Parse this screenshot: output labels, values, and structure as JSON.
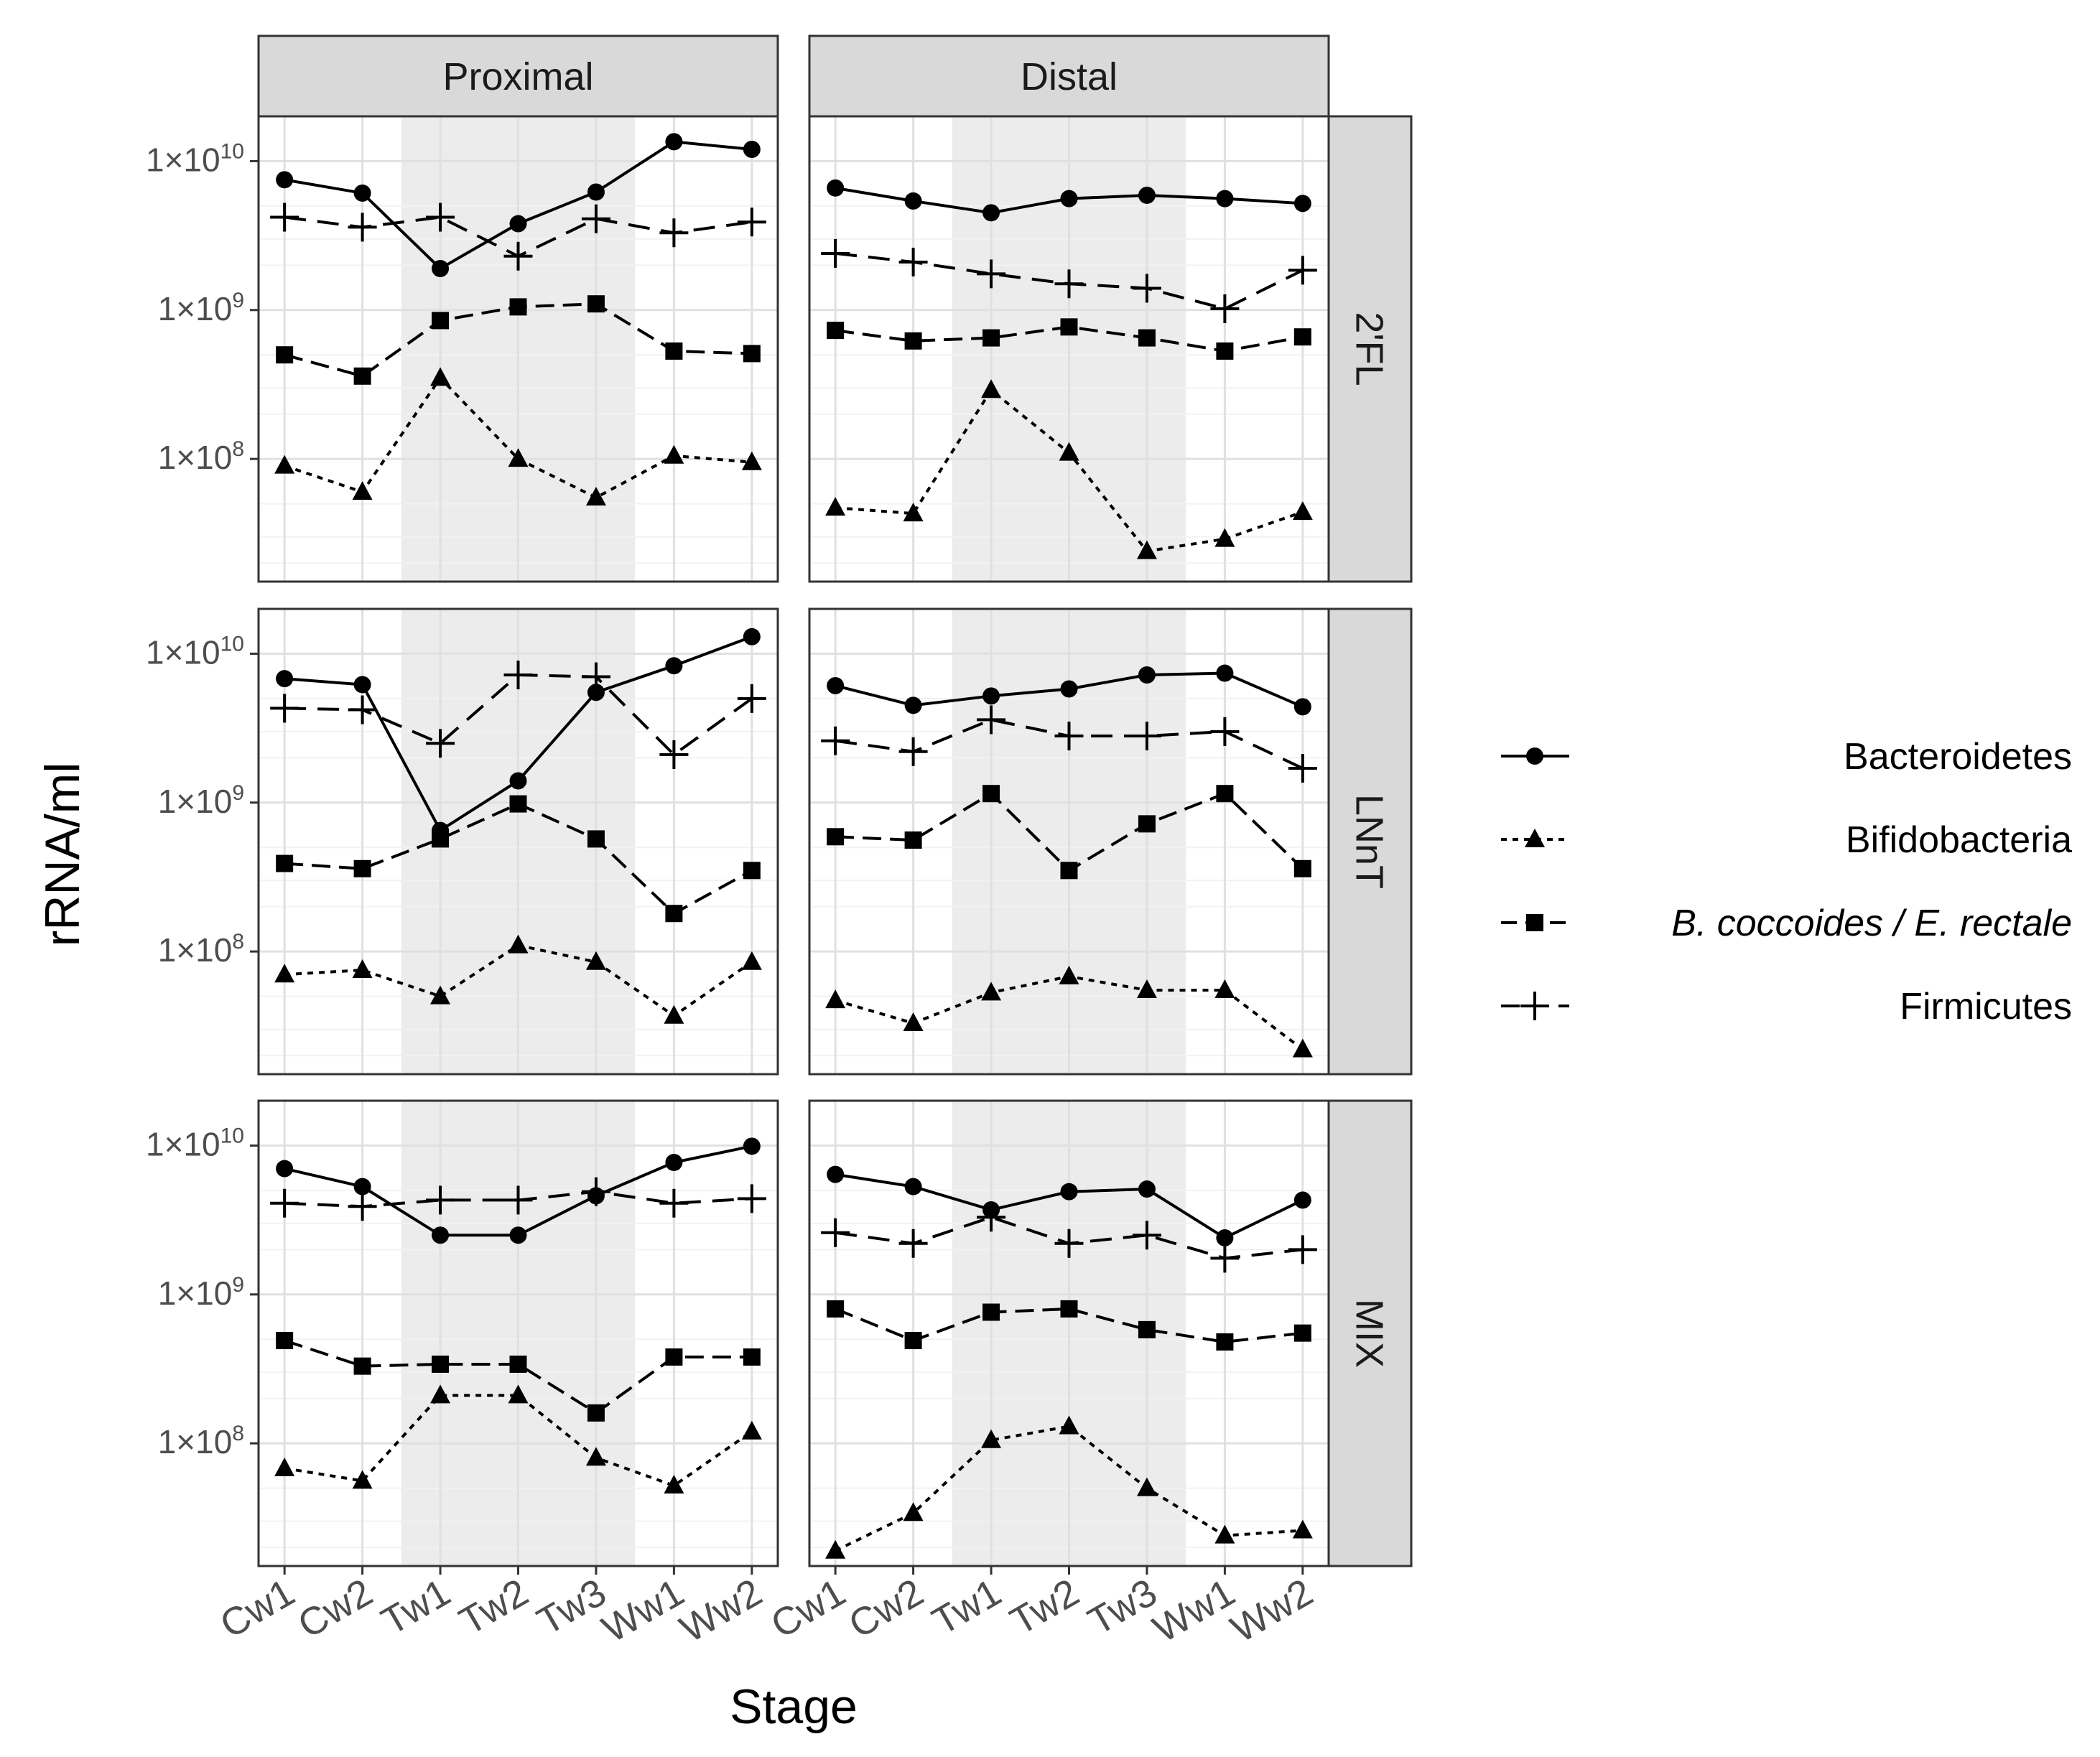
{
  "chart_data": {
    "type": "line",
    "facet_columns": [
      "Proximal",
      "Distal"
    ],
    "facet_rows": [
      "2'FL",
      "LNnT",
      "MIX"
    ],
    "x_categories": [
      "Cw1",
      "Cw2",
      "Tw1",
      "Tw2",
      "Tw3",
      "Ww1",
      "Ww2"
    ],
    "shaded_stages": [
      "Tw1",
      "Tw2",
      "Tw3"
    ],
    "xlabel": "Stage",
    "ylabel": "rRNA/ml",
    "y_scale": "log10",
    "ylim": [
      15000000,
      20000000000
    ],
    "y_ticks": [
      {
        "value": 100000000,
        "label": "1×10",
        "exp": "8"
      },
      {
        "value": 1000000000,
        "label": "1×10",
        "exp": "9"
      },
      {
        "value": 10000000000,
        "label": "1×10",
        "exp": "10"
      }
    ],
    "legend_position": "right",
    "legend": [
      {
        "name": "Bacteroidetes",
        "italic": false
      },
      {
        "name": "Bifidobacteria",
        "italic": false
      },
      {
        "name": "B. coccoides / E. rectale",
        "italic": true
      },
      {
        "name": "Firmicutes",
        "italic": false
      }
    ],
    "panels": [
      {
        "col": "Proximal",
        "row": "2'FL",
        "series": [
          {
            "name": "Bacteroidetes",
            "values": [
              7500000000.0,
              6100000000.0,
              1900000000.0,
              3800000000.0,
              6200000000.0,
              13500000000.0,
              12000000000.0
            ]
          },
          {
            "name": "Bifidobacteria",
            "values": [
              90000000.0,
              60000000.0,
              350000000.0,
              100000000.0,
              55000000.0,
              105000000.0,
              95000000.0
            ]
          },
          {
            "name": "B. coccoides / E. rectale",
            "values": [
              500000000.0,
              360000000.0,
              850000000.0,
              1050000000.0,
              1100000000.0,
              530000000.0,
              510000000.0
            ]
          },
          {
            "name": "Firmicutes",
            "values": [
              4200000000.0,
              3600000000.0,
              4200000000.0,
              2300000000.0,
              4100000000.0,
              3300000000.0,
              3900000000.0
            ]
          }
        ]
      },
      {
        "col": "Distal",
        "row": "2'FL",
        "series": [
          {
            "name": "Bacteroidetes",
            "values": [
              6600000000.0,
              5400000000.0,
              4500000000.0,
              5600000000.0,
              5900000000.0,
              5600000000.0,
              5200000000.0
            ]
          },
          {
            "name": "Bifidobacteria",
            "values": [
              47000000.0,
              43000000.0,
              290000000.0,
              110000000.0,
              24000000.0,
              29000000.0,
              44000000.0
            ]
          },
          {
            "name": "B. coccoides / E. rectale",
            "values": [
              730000000.0,
              620000000.0,
              650000000.0,
              770000000.0,
              650000000.0,
              530000000.0,
              660000000.0
            ]
          },
          {
            "name": "Firmicutes",
            "values": [
              2400000000.0,
              2100000000.0,
              1750000000.0,
              1500000000.0,
              1400000000.0,
              1020000000.0,
              1850000000.0
            ]
          }
        ]
      },
      {
        "col": "Proximal",
        "row": "LNnT",
        "series": [
          {
            "name": "Bacteroidetes",
            "values": [
              6800000000.0,
              6200000000.0,
              650000000.0,
              1400000000.0,
              5500000000.0,
              8300000000.0,
              13000000000.0
            ]
          },
          {
            "name": "Bifidobacteria",
            "values": [
              70000000.0,
              75000000.0,
              50000000.0,
              110000000.0,
              85000000.0,
              37000000.0,
              85000000.0
            ]
          },
          {
            "name": "B. coccoides / E. rectale",
            "values": [
              390000000.0,
              360000000.0,
              570000000.0,
              980000000.0,
              570000000.0,
              180000000.0,
              350000000.0
            ]
          },
          {
            "name": "Firmicutes",
            "values": [
              4300000000.0,
              4200000000.0,
              2500000000.0,
              7200000000.0,
              7000000000.0,
              2100000000.0,
              5000000000.0
            ]
          }
        ]
      },
      {
        "col": "Distal",
        "row": "LNnT",
        "series": [
          {
            "name": "Bacteroidetes",
            "values": [
              6100000000.0,
              4500000000.0,
              5200000000.0,
              5800000000.0,
              7200000000.0,
              7400000000.0,
              4400000000.0
            ]
          },
          {
            "name": "Bifidobacteria",
            "values": [
              47000000.0,
              33000000.0,
              53000000.0,
              68000000.0,
              55000000.0,
              55000000.0,
              22000000.0
            ]
          },
          {
            "name": "B. coccoides / E. rectale",
            "values": [
              590000000.0,
              560000000.0,
              1150000000.0,
              350000000.0,
              720000000.0,
              1150000000.0,
              360000000.0
            ]
          },
          {
            "name": "Firmicutes",
            "values": [
              2600000000.0,
              2200000000.0,
              3600000000.0,
              2800000000.0,
              2800000000.0,
              3000000000.0,
              1700000000.0
            ]
          }
        ]
      },
      {
        "col": "Proximal",
        "row": "MIX",
        "series": [
          {
            "name": "Bacteroidetes",
            "values": [
              7000000000.0,
              5300000000.0,
              2500000000.0,
              2500000000.0,
              4600000000.0,
              7700000000.0,
              9900000000.0
            ]
          },
          {
            "name": "Bifidobacteria",
            "values": [
              68000000.0,
              56000000.0,
              210000000.0,
              210000000.0,
              80000000.0,
              52000000.0,
              120000000.0
            ]
          },
          {
            "name": "B. coccoides / E. rectale",
            "values": [
              490000000.0,
              330000000.0,
              340000000.0,
              340000000.0,
              160000000.0,
              380000000.0,
              380000000.0
            ]
          },
          {
            "name": "Firmicutes",
            "values": [
              4100000000.0,
              3900000000.0,
              4300000000.0,
              4300000000.0,
              4900000000.0,
              4100000000.0,
              4400000000.0
            ]
          }
        ]
      },
      {
        "col": "Distal",
        "row": "MIX",
        "series": [
          {
            "name": "Bacteroidetes",
            "values": [
              6400000000.0,
              5300000000.0,
              3700000000.0,
              4900000000.0,
              5100000000.0,
              2400000000.0,
              4300000000.0
            ]
          },
          {
            "name": "Bifidobacteria",
            "values": [
              19000000.0,
              34000000.0,
              105000000.0,
              130000000.0,
              50000000.0,
              24000000.0,
              26000000.0
            ]
          },
          {
            "name": "B. coccoides / E. rectale",
            "values": [
              800000000.0,
              490000000.0,
              760000000.0,
              800000000.0,
              580000000.0,
              480000000.0,
              550000000.0
            ]
          },
          {
            "name": "Firmicutes",
            "values": [
              2600000000.0,
              2200000000.0,
              3300000000.0,
              2200000000.0,
              2500000000.0,
              1750000000.0,
              2000000000.0
            ]
          }
        ]
      }
    ]
  }
}
